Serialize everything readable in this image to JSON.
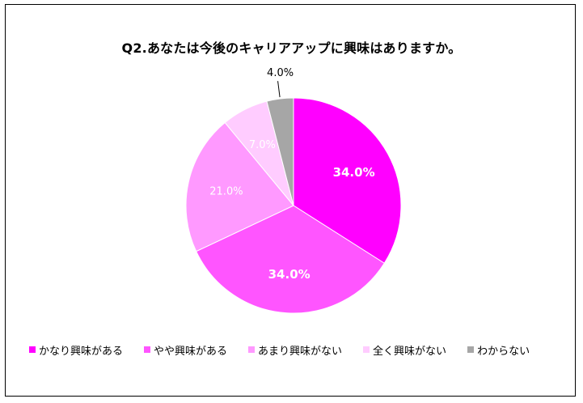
{
  "chart_data": {
    "type": "pie",
    "title": "Q2.あなたは今後のキャリアアップに興味はありますか。",
    "slices": [
      {
        "label": "かなり興味がある",
        "value": 34.0,
        "display": "34.0%",
        "color": "#ff00ff",
        "label_color": "#ffffff",
        "bold": true
      },
      {
        "label": "やや興味がある",
        "value": 34.0,
        "display": "34.0%",
        "color": "#ff55ff",
        "label_color": "#ffffff",
        "bold": true
      },
      {
        "label": "あまり興味がない",
        "value": 21.0,
        "display": "21.0%",
        "color": "#ff99ff",
        "label_color": "#ffffff",
        "bold": false
      },
      {
        "label": "全く興味がない",
        "value": 7.0,
        "display": "7.0%",
        "color": "#ffccff",
        "label_color": "#ffffff",
        "bold": false
      },
      {
        "label": "わからない",
        "value": 4.0,
        "display": "4.0%",
        "color": "#a6a6a6",
        "label_color": "#000000",
        "bold": false
      }
    ],
    "start_angle": "12 o'clock",
    "direction": "clockwise",
    "legend_position": "bottom"
  }
}
